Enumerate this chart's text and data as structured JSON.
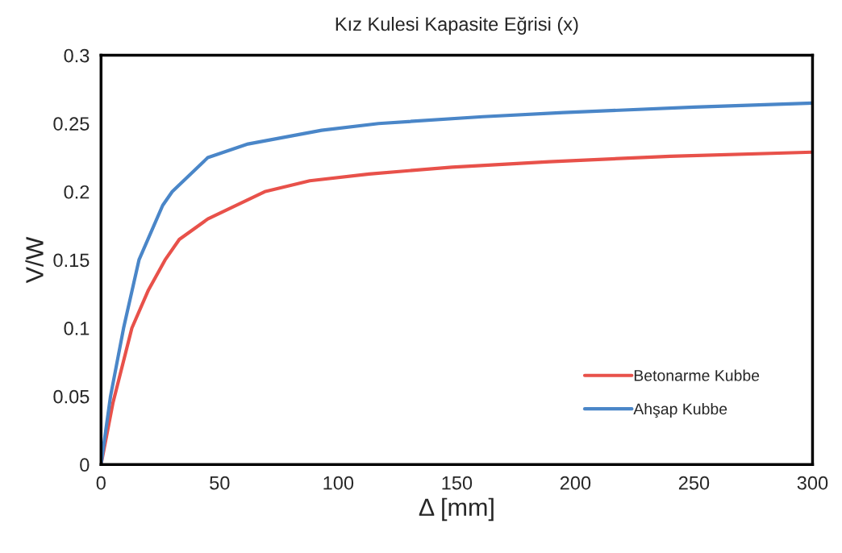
{
  "chart_data": {
    "type": "line",
    "title": "Kız Kulesi Kapasite Eğrisi (x)",
    "xlabel": "Δ [mm]",
    "ylabel": "V/W",
    "series": [
      {
        "name": "Betonarme Kubbe",
        "color": "#e8514a",
        "x": [
          0,
          5,
          13,
          20,
          27,
          33,
          45,
          69,
          88,
          113,
          148,
          189,
          240,
          300
        ],
        "values": [
          0,
          0.045,
          0.1,
          0.128,
          0.15,
          0.165,
          0.18,
          0.2,
          0.208,
          0.213,
          0.218,
          0.222,
          0.226,
          0.229
        ]
      },
      {
        "name": "Ahşap Kubbe",
        "color": "#4a86c8",
        "x": [
          0,
          4,
          9.5,
          16,
          26,
          30,
          45,
          62,
          93,
          117,
          161,
          195,
          250,
          300
        ],
        "values": [
          0,
          0.05,
          0.1,
          0.15,
          0.19,
          0.2,
          0.225,
          0.235,
          0.245,
          0.25,
          0.255,
          0.258,
          0.262,
          0.265
        ]
      }
    ],
    "xlim": [
      0,
      300
    ],
    "xticks": [
      0,
      50,
      100,
      150,
      200,
      250,
      300
    ],
    "ylim": [
      0,
      0.3
    ],
    "yticks": [
      0,
      0.05,
      0.1,
      0.15,
      0.2,
      0.25,
      0.3
    ],
    "grid": false,
    "legend": "bottom right",
    "marker": "none",
    "line_style": "solid"
  }
}
